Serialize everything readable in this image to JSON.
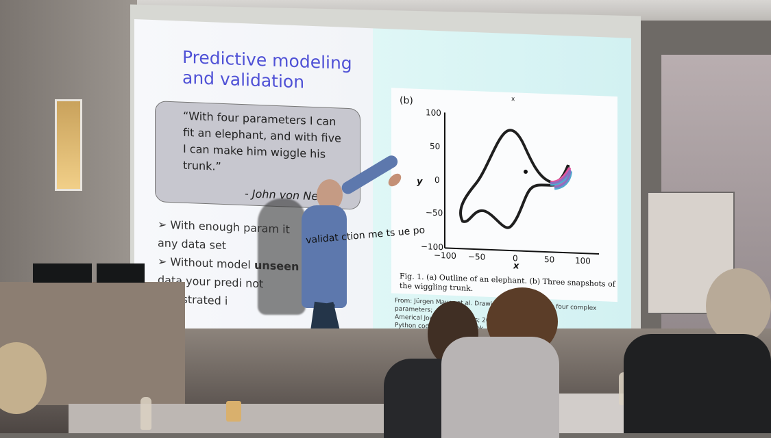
{
  "scene": {
    "slide": {
      "title": "Predictive modeling\nand validation",
      "quote": "“With four parameters I can fit an elephant, and with five I can make him wiggle his trunk.”",
      "quote_author": "- John von Neum",
      "bullets": [
        "With enough param",
        "any data set",
        "Without model",
        "data your predi",
        "monstrated i"
      ],
      "visible_fragments": [
        "it",
        "unseen",
        "not"
      ],
      "figure": {
        "label": "(b)",
        "caption": "Fig. 1. (a) Outline of an elephant. (b) Three snapshots of the wiggling trunk.",
        "axis_label_x": "x",
        "axis_label_y": "y",
        "x_ticks": [
          "−100",
          "−50",
          "0",
          "50",
          "100"
        ],
        "y_ticks": [
          "100",
          "50",
          "0",
          "−50",
          "−100"
        ],
        "x_marker": "x"
      },
      "citation": [
        "From: Jürgen Mayer et al. Drawing an elephant with four complex parameters;",
        "Americal Journal of Physics; 2010",
        "Python code: https://            ndcook.              /how-to-fit-an-elephant/"
      ]
    },
    "presenter_shirt_text": "validat\nction me\nts ue po",
    "colors": {
      "title_purple": "#4f51d6",
      "elephant_black": "#1f1f1f",
      "trunk_pink": "#e2569d",
      "trunk_blue": "#52a9cf",
      "trunk_purple": "#8b6fc1"
    }
  }
}
